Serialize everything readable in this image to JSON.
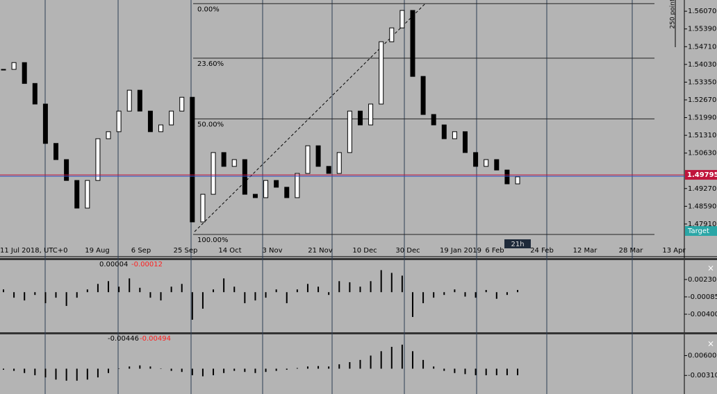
{
  "chart_data": {
    "type": "candlestick",
    "x_labels": [
      "11 Jul 2018, UTC+0",
      "19 Aug",
      "6 Sep",
      "25 Sep",
      "14 Oct",
      "3 Nov",
      "21 Nov",
      "10 Dec",
      "30 Dec",
      "19 Jan 2019",
      "6 Feb",
      "24 Feb",
      "12 Mar",
      "28 Mar",
      "13 Apr"
    ],
    "closes": [
      1.5384,
      1.541,
      1.533,
      1.5251,
      1.51,
      1.5038,
      1.4958,
      1.4852,
      1.4958,
      1.5118,
      1.5145,
      1.5224,
      1.5304,
      1.5224,
      1.5145,
      1.5171,
      1.5224,
      1.5277,
      1.4799,
      1.4905,
      1.5065,
      1.5012,
      1.5038,
      1.4905,
      1.4892,
      1.4958,
      1.4932,
      1.4892,
      1.4985,
      1.5091,
      1.5012,
      1.4985,
      1.5065,
      1.5224,
      1.5171,
      1.5251,
      1.549,
      1.5543,
      1.561,
      1.5357,
      1.5211,
      1.5171,
      1.5118,
      1.5145,
      1.5065,
      1.5012,
      1.5038,
      1.4998,
      1.4945,
      1.4972
    ],
    "ylim": [
      1.4719,
      1.565
    ],
    "yticks": [
      {
        "value": 1.5607,
        "label": "1.56070"
      },
      {
        "value": 1.5539,
        "label": "1.55390"
      },
      {
        "value": 1.5471,
        "label": "1.54710"
      },
      {
        "value": 1.5403,
        "label": "1.54030"
      },
      {
        "value": 1.5335,
        "label": "1.53350"
      },
      {
        "value": 1.5267,
        "label": "1.52670"
      },
      {
        "value": 1.5199,
        "label": "1.51990"
      },
      {
        "value": 1.5131,
        "label": "1.51310"
      },
      {
        "value": 1.5063,
        "label": "1.50630"
      },
      {
        "value": 1.4927,
        "label": "1.49270"
      },
      {
        "value": 1.4859,
        "label": "1.48590"
      },
      {
        "value": 1.4791,
        "label": "1.47910"
      }
    ],
    "current_price": {
      "value": 1.49795,
      "label": "1.49795"
    },
    "fibonacci": [
      {
        "value": 1.5636,
        "label": "0.00%"
      },
      {
        "value": 1.5427,
        "label": "23.60%"
      },
      {
        "value": 1.5194,
        "label": "50.00%"
      },
      {
        "value": 1.4751,
        "label": "100.00%"
      }
    ],
    "scale_label": "250 point",
    "target_label": "Target",
    "timer_label": "21h",
    "indicators": [
      {
        "values": [
          0.0005,
          -0.001,
          -0.0015,
          -0.0005,
          -0.002,
          -0.001,
          -0.0025,
          -0.001,
          0.0005,
          0.0015,
          0.002,
          0.001,
          0.0025,
          0.0008,
          -0.001,
          -0.0015,
          0.001,
          0.0015,
          -0.005,
          -0.003,
          0.0005,
          0.0025,
          0.001,
          -0.002,
          -0.0015,
          -0.001,
          0.0005,
          -0.002,
          0.0005,
          0.0015,
          0.001,
          -0.0005,
          0.002,
          0.0018,
          0.001,
          0.002,
          0.004,
          0.0035,
          0.003,
          -0.0045,
          -0.002,
          -0.001,
          -0.0005,
          0.0005,
          -0.0008,
          -0.001,
          0.0004,
          -0.0012,
          -0.0005,
          0.0004
        ],
        "ylim": [
          -0.00715,
          0.00569
        ],
        "yticks": [
          {
            "value": 0.0023,
            "label": "0.00230"
          },
          {
            "value": -0.00085,
            "label": "-0.00085"
          },
          {
            "value": -0.004,
            "label": "-0.00400"
          }
        ],
        "readouts": [
          {
            "value": 4e-05,
            "label": "0.00004",
            "color": "#000000"
          },
          {
            "value": -0.00012,
            "label": "-0.00012",
            "color": "#ff2020"
          }
        ]
      },
      {
        "values": [
          -0.0005,
          -0.001,
          -0.002,
          -0.003,
          -0.004,
          -0.005,
          -0.0055,
          -0.0055,
          -0.005,
          -0.004,
          -0.002,
          0,
          0.001,
          0.0015,
          0.001,
          0,
          -0.001,
          -0.0015,
          -0.003,
          -0.0035,
          -0.003,
          -0.002,
          -0.001,
          -0.0015,
          -0.002,
          -0.0015,
          -0.001,
          -0.0005,
          0.0003,
          0.001,
          0.0012,
          0.001,
          0.002,
          0.003,
          0.004,
          0.006,
          0.008,
          0.01,
          0.011,
          0.008,
          0.004,
          0.001,
          -0.001,
          -0.002,
          -0.0025,
          -0.003,
          -0.003,
          -0.003,
          -0.003,
          -0.003
        ],
        "ylim": [
          -0.0116,
          0.0154
        ],
        "yticks": [
          {
            "value": 0.006,
            "label": "0.00600"
          },
          {
            "value": -0.0031,
            "label": "-0.00310"
          }
        ],
        "readouts": [
          {
            "value": -0.00446,
            "label": "-0.00446",
            "color": "#000000"
          },
          {
            "value": -0.00494,
            "label": "-0.00494",
            "color": "#ff2020"
          }
        ]
      }
    ]
  }
}
